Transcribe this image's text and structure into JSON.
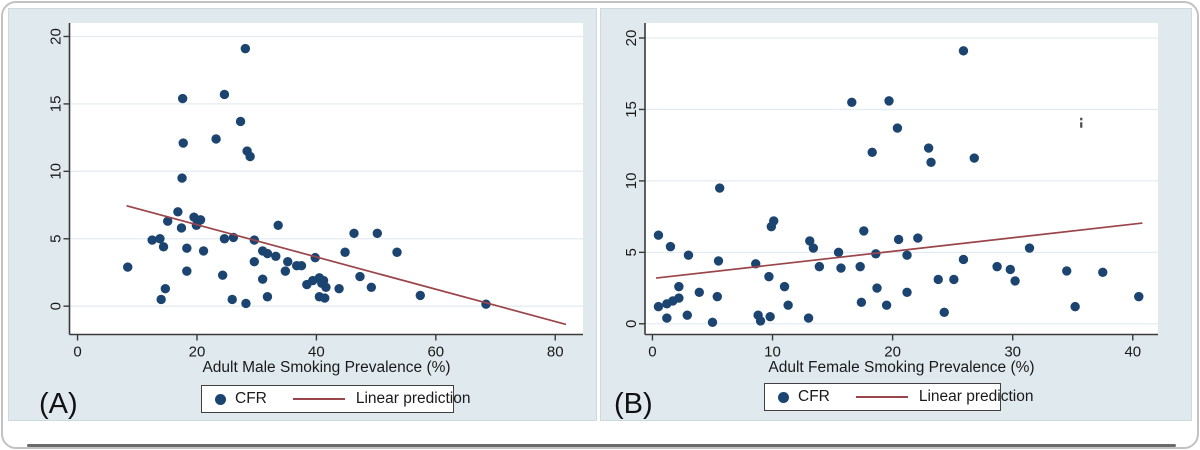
{
  "colors": {
    "dot": "#1b4570",
    "regression_line": "#9b4449",
    "panel_background": "#dfe9ee",
    "plot_background": "#ffffff",
    "gridline": "#e4ecf1",
    "axis": "#3a3a3a",
    "text": "#1a1a1a",
    "legend_border": "#404040",
    "card_border": "#c2c2c2",
    "bottom_edge": "#6a6a6a",
    "artifact": "#4a4a4a"
  },
  "chart_data": [
    {
      "type": "scatter",
      "panel_label": "(A)",
      "xlabel": "Adult Male Smoking Prevalence (%)",
      "ylabel": "",
      "x_ticks": [
        0,
        20,
        40,
        60,
        80
      ],
      "y_ticks": [
        0,
        5,
        10,
        15,
        20
      ],
      "x_range": [
        -1.35,
        84.65
      ],
      "y_range": [
        -2.1,
        21.0
      ],
      "grid": "horizontal",
      "legend": {
        "position": "bottom",
        "dot_label": "CFR",
        "line_label": "Linear prediction"
      },
      "series": [
        {
          "name": "CFR",
          "type": "points",
          "points": [
            [
              28.1,
              19.1
            ],
            [
              24.6,
              15.7
            ],
            [
              17.6,
              15.4
            ],
            [
              27.3,
              13.7
            ],
            [
              23.2,
              12.4
            ],
            [
              17.7,
              12.1
            ],
            [
              28.4,
              11.5
            ],
            [
              28.9,
              11.1
            ],
            [
              17.5,
              9.5
            ],
            [
              16.8,
              7.0
            ],
            [
              15.1,
              6.3
            ],
            [
              19.5,
              6.6
            ],
            [
              20.6,
              6.4
            ],
            [
              19.9,
              6.0
            ],
            [
              17.4,
              5.8
            ],
            [
              33.6,
              6.0
            ],
            [
              12.5,
              4.9
            ],
            [
              13.8,
              5.0
            ],
            [
              24.6,
              5.0
            ],
            [
              26.1,
              5.1
            ],
            [
              29.6,
              4.9
            ],
            [
              46.3,
              5.4
            ],
            [
              50.2,
              5.4
            ],
            [
              14.4,
              4.4
            ],
            [
              18.3,
              4.3
            ],
            [
              21.1,
              4.1
            ],
            [
              31.0,
              4.1
            ],
            [
              31.8,
              3.9
            ],
            [
              33.2,
              3.7
            ],
            [
              39.8,
              3.6
            ],
            [
              44.8,
              4.0
            ],
            [
              53.5,
              4.0
            ],
            [
              35.2,
              3.3
            ],
            [
              29.6,
              3.3
            ],
            [
              36.7,
              3.0
            ],
            [
              37.5,
              3.0
            ],
            [
              34.8,
              2.6
            ],
            [
              8.4,
              2.9
            ],
            [
              18.3,
              2.6
            ],
            [
              24.3,
              2.3
            ],
            [
              47.3,
              2.2
            ],
            [
              31.0,
              2.0
            ],
            [
              38.4,
              1.6
            ],
            [
              39.4,
              1.9
            ],
            [
              40.5,
              2.1
            ],
            [
              41.2,
              1.9
            ],
            [
              40.9,
              1.7
            ],
            [
              41.6,
              1.4
            ],
            [
              43.8,
              1.3
            ],
            [
              14.7,
              1.3
            ],
            [
              49.2,
              1.4
            ],
            [
              57.4,
              0.8
            ],
            [
              31.8,
              0.7
            ],
            [
              40.5,
              0.7
            ],
            [
              41.4,
              0.6
            ],
            [
              14.0,
              0.5
            ],
            [
              25.9,
              0.5
            ],
            [
              28.2,
              0.2
            ],
            [
              68.4,
              0.15
            ]
          ]
        },
        {
          "name": "Linear prediction",
          "type": "line",
          "points": [
            [
              8.2,
              7.45
            ],
            [
              81.8,
              -1.35
            ]
          ]
        }
      ]
    },
    {
      "type": "scatter",
      "panel_label": "(B)",
      "xlabel": "Adult Female Smoking Prevalence (%)",
      "ylabel": "",
      "x_ticks": [
        0,
        10,
        20,
        30,
        40
      ],
      "y_ticks": [
        0,
        5,
        10,
        15,
        20
      ],
      "x_range": [
        -0.62,
        42.1
      ],
      "y_range": [
        -0.75,
        21.05
      ],
      "grid": "horizontal",
      "legend": {
        "position": "bottom",
        "dot_label": "CFR",
        "line_label": "Linear prediction"
      },
      "artifact_mark": {
        "x": 35.7,
        "y": 14.0,
        "shape": "small-i-glyph"
      },
      "series": [
        {
          "name": "CFR",
          "type": "points",
          "points": [
            [
              25.9,
              19.1
            ],
            [
              16.6,
              15.5
            ],
            [
              19.7,
              15.6
            ],
            [
              20.4,
              13.7
            ],
            [
              18.3,
              12.0
            ],
            [
              23.0,
              12.3
            ],
            [
              23.2,
              11.3
            ],
            [
              26.8,
              11.6
            ],
            [
              5.6,
              9.5
            ],
            [
              0.5,
              6.2
            ],
            [
              9.9,
              6.8
            ],
            [
              10.1,
              7.2
            ],
            [
              17.6,
              6.5
            ],
            [
              1.5,
              5.4
            ],
            [
              13.1,
              5.8
            ],
            [
              13.4,
              5.3
            ],
            [
              20.5,
              5.9
            ],
            [
              22.1,
              6.0
            ],
            [
              31.4,
              5.3
            ],
            [
              3.0,
              4.8
            ],
            [
              5.5,
              4.4
            ],
            [
              8.6,
              4.2
            ],
            [
              15.5,
              5.0
            ],
            [
              18.6,
              4.9
            ],
            [
              21.2,
              4.8
            ],
            [
              25.9,
              4.5
            ],
            [
              13.9,
              4.0
            ],
            [
              15.7,
              3.9
            ],
            [
              17.3,
              4.0
            ],
            [
              28.7,
              4.0
            ],
            [
              29.8,
              3.8
            ],
            [
              34.5,
              3.7
            ],
            [
              37.5,
              3.6
            ],
            [
              9.7,
              3.3
            ],
            [
              23.8,
              3.1
            ],
            [
              25.1,
              3.1
            ],
            [
              30.2,
              3.0
            ],
            [
              2.2,
              2.6
            ],
            [
              3.9,
              2.2
            ],
            [
              5.4,
              1.9
            ],
            [
              18.7,
              2.5
            ],
            [
              21.2,
              2.2
            ],
            [
              11.0,
              2.6
            ],
            [
              40.5,
              1.9
            ],
            [
              0.5,
              1.2
            ],
            [
              1.2,
              1.4
            ],
            [
              1.7,
              1.6
            ],
            [
              2.2,
              1.8
            ],
            [
              17.4,
              1.5
            ],
            [
              19.5,
              1.3
            ],
            [
              11.3,
              1.3
            ],
            [
              13.0,
              0.4
            ],
            [
              35.2,
              1.2
            ],
            [
              24.3,
              0.8
            ],
            [
              1.2,
              0.4
            ],
            [
              2.9,
              0.6
            ],
            [
              8.8,
              0.6
            ],
            [
              9.0,
              0.2
            ],
            [
              9.8,
              0.5
            ],
            [
              5.0,
              0.1
            ]
          ]
        },
        {
          "name": "Linear prediction",
          "type": "line",
          "points": [
            [
              0.3,
              3.2
            ],
            [
              40.8,
              7.05
            ]
          ]
        }
      ]
    }
  ]
}
